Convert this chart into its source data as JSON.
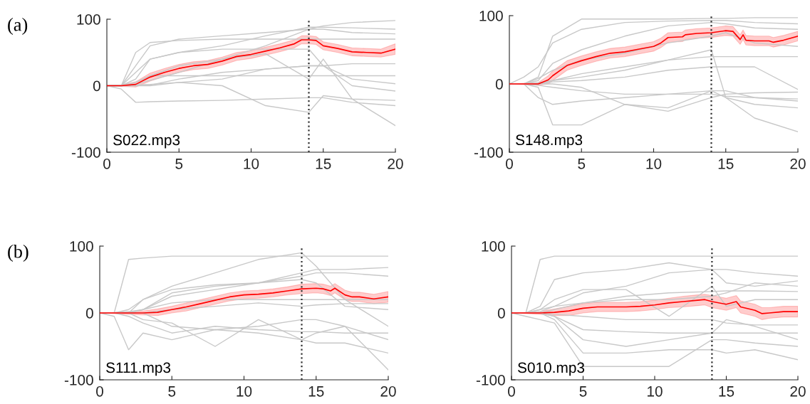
{
  "chart_data": [
    {
      "type": "line",
      "title": "(a)",
      "annotations": [
        "S022.mp3"
      ],
      "xlim": [
        0,
        20
      ],
      "ylim": [
        -100,
        100
      ],
      "xticks": [
        0,
        5,
        10,
        15,
        20
      ],
      "yticks": [
        -100,
        0,
        100
      ],
      "ref_lines": [
        {
          "axis": "x",
          "value": 14,
          "color": "#333333",
          "line_style": "dotted"
        }
      ],
      "x": [
        0,
        1,
        2,
        3,
        5,
        8,
        11,
        14,
        15,
        17,
        20
      ],
      "series": [
        {
          "color": "#c8c8c8",
          "values": [
            0,
            0,
            50,
            65,
            68,
            70,
            70,
            70,
            70,
            70,
            70
          ]
        },
        {
          "color": "#c8c8c8",
          "values": [
            0,
            0,
            5,
            15,
            15,
            15,
            15,
            15,
            15,
            15,
            15
          ]
        },
        {
          "color": "#c8c8c8",
          "values": [
            0,
            0,
            2,
            8,
            20,
            40,
            60,
            85,
            90,
            95,
            98
          ]
        },
        {
          "color": "#c8c8c8",
          "values": [
            0,
            -5,
            -25,
            -24,
            -23,
            -22,
            -20,
            -18,
            -18,
            -25,
            -30
          ]
        },
        {
          "color": "#c8c8c8",
          "values": [
            0,
            0,
            5,
            15,
            30,
            40,
            48,
            10,
            40,
            -20,
            -60
          ]
        },
        {
          "color": "#c8c8c8",
          "values": [
            0,
            0,
            10,
            40,
            50,
            60,
            75,
            88,
            88,
            87,
            85
          ]
        },
        {
          "color": "#c8c8c8",
          "values": [
            0,
            0,
            0,
            0,
            5,
            0,
            -30,
            -40,
            -15,
            -20,
            -22
          ]
        },
        {
          "color": "#c8c8c8",
          "values": [
            0,
            0,
            20,
            40,
            50,
            55,
            55,
            55,
            30,
            0,
            -8
          ]
        },
        {
          "color": "#c8c8c8",
          "values": [
            0,
            0,
            1,
            2,
            5,
            10,
            25,
            30,
            30,
            33,
            33
          ]
        },
        {
          "color": "#c8c8c8",
          "values": [
            0,
            0,
            30,
            60,
            70,
            75,
            80,
            85,
            85,
            80,
            78
          ]
        },
        {
          "color": "#c8c8c8",
          "values": [
            0,
            0,
            0,
            1,
            10,
            20,
            25,
            30,
            30,
            10,
            3
          ]
        },
        {
          "color": "#ff0000",
          "x": [
            0,
            1,
            2,
            3,
            4,
            5,
            6,
            7,
            8,
            9,
            10,
            11,
            12,
            13,
            13.5,
            14,
            14.5,
            15,
            16,
            17,
            18,
            19,
            20
          ],
          "values": [
            0,
            0,
            2,
            13,
            20,
            26,
            30,
            32,
            37,
            44,
            47,
            52,
            57,
            63,
            69,
            69,
            68,
            60,
            56,
            51,
            50,
            49,
            55
          ],
          "lower": [
            0,
            -1,
            -2,
            7,
            14,
            20,
            24,
            26,
            31,
            38,
            41,
            46,
            51,
            57,
            63,
            63,
            62,
            54,
            50,
            45,
            44,
            43,
            47
          ],
          "upper": [
            0,
            1,
            6,
            19,
            26,
            32,
            36,
            38,
            43,
            50,
            53,
            58,
            63,
            69,
            75,
            75,
            74,
            66,
            62,
            57,
            56,
            55,
            63
          ]
        }
      ]
    },
    {
      "type": "line",
      "annotations": [
        "S148.mp3"
      ],
      "xlim": [
        0,
        20
      ],
      "ylim": [
        -100,
        100
      ],
      "xticks": [
        0,
        5,
        10,
        15,
        20
      ],
      "yticks": [
        -100,
        0,
        100
      ],
      "ref_lines": [
        {
          "axis": "x",
          "value": 14,
          "color": "#333333",
          "line_style": "dotted"
        }
      ],
      "x": [
        0,
        1,
        2,
        3,
        5,
        8,
        11,
        14,
        15,
        17,
        20
      ],
      "series": [
        {
          "color": "#c8c8c8",
          "values": [
            0,
            10,
            25,
            60,
            80,
            90,
            92,
            93,
            93,
            90,
            88
          ]
        },
        {
          "color": "#c8c8c8",
          "values": [
            0,
            0,
            -20,
            -30,
            -25,
            -20,
            -15,
            -10,
            -10,
            -20,
            -25
          ]
        },
        {
          "color": "#c8c8c8",
          "values": [
            0,
            0,
            -5,
            -60,
            -60,
            -30,
            -40,
            -20,
            -15,
            -13,
            -12
          ]
        },
        {
          "color": "#c8c8c8",
          "values": [
            0,
            0,
            5,
            30,
            50,
            70,
            85,
            90,
            88,
            82,
            80
          ]
        },
        {
          "color": "#c8c8c8",
          "values": [
            0,
            0,
            2,
            5,
            10,
            20,
            35,
            50,
            -20,
            -50,
            -70
          ]
        },
        {
          "color": "#c8c8c8",
          "values": [
            0,
            0,
            0,
            5,
            15,
            25,
            35,
            40,
            40,
            40,
            40
          ]
        },
        {
          "color": "#c8c8c8",
          "values": [
            0,
            0,
            0,
            0,
            -5,
            -30,
            -35,
            -10,
            -20,
            -30,
            -35
          ]
        },
        {
          "color": "#c8c8c8",
          "values": [
            0,
            0,
            8,
            20,
            35,
            45,
            60,
            70,
            75,
            60,
            55
          ]
        },
        {
          "color": "#c8c8c8",
          "values": [
            0,
            0,
            10,
            70,
            95,
            95,
            95,
            96,
            96,
            97,
            97
          ]
        },
        {
          "color": "#c8c8c8",
          "values": [
            0,
            0,
            -2,
            -5,
            -10,
            -15,
            -15,
            -15,
            -18,
            -20,
            -22
          ]
        },
        {
          "color": "#c8c8c8",
          "values": [
            0,
            0,
            0,
            3,
            5,
            10,
            20,
            25,
            25,
            25,
            -8
          ]
        },
        {
          "color": "#ff0000",
          "x": [
            0,
            1,
            2,
            2.7,
            3,
            4,
            5,
            6,
            7,
            8,
            9,
            10,
            10.5,
            11,
            12,
            12.2,
            13,
            14,
            15,
            15.5,
            16,
            16.2,
            16.4,
            17,
            18,
            18.3,
            19,
            20
          ],
          "values": [
            0,
            0,
            0,
            6,
            12,
            27,
            34,
            40,
            45,
            47,
            51,
            55,
            60,
            68,
            69,
            72,
            74,
            75,
            78,
            77,
            65,
            72,
            64,
            63,
            63,
            61,
            64,
            70
          ],
          "lower": [
            0,
            -1,
            -2,
            0,
            5,
            20,
            27,
            33,
            38,
            40,
            44,
            48,
            53,
            61,
            62,
            65,
            67,
            68,
            71,
            70,
            58,
            65,
            57,
            56,
            56,
            54,
            57,
            63
          ],
          "upper": [
            0,
            1,
            2,
            12,
            19,
            34,
            41,
            47,
            52,
            54,
            58,
            62,
            67,
            75,
            76,
            79,
            81,
            82,
            85,
            84,
            72,
            79,
            71,
            70,
            70,
            68,
            71,
            77
          ]
        }
      ]
    },
    {
      "type": "line",
      "title": "(b)",
      "annotations": [
        "S111.mp3"
      ],
      "xlim": [
        0,
        20
      ],
      "ylim": [
        -100,
        100
      ],
      "xticks": [
        0,
        5,
        10,
        15,
        20
      ],
      "yticks": [
        -100,
        0,
        100
      ],
      "ref_lines": [
        {
          "axis": "x",
          "value": 14,
          "color": "#333333",
          "line_style": "dotted"
        }
      ],
      "x": [
        0,
        1,
        2,
        3,
        5,
        8,
        11,
        14,
        15,
        17,
        20
      ],
      "series": [
        {
          "color": "#c8c8c8",
          "values": [
            0,
            0,
            80,
            82,
            85,
            85,
            85,
            85,
            85,
            85,
            85
          ]
        },
        {
          "color": "#c8c8c8",
          "values": [
            0,
            0,
            0,
            20,
            40,
            60,
            80,
            90,
            70,
            20,
            -20
          ]
        },
        {
          "color": "#c8c8c8",
          "values": [
            0,
            -5,
            -55,
            -30,
            -40,
            -25,
            -30,
            -40,
            -45,
            -45,
            -60
          ]
        },
        {
          "color": "#c8c8c8",
          "values": [
            0,
            0,
            0,
            5,
            30,
            40,
            45,
            55,
            60,
            60,
            55
          ]
        },
        {
          "color": "#c8c8c8",
          "values": [
            0,
            0,
            -5,
            -15,
            -30,
            -20,
            -25,
            -28,
            -28,
            -30,
            -30
          ]
        },
        {
          "color": "#c8c8c8",
          "values": [
            0,
            0,
            2,
            5,
            15,
            20,
            20,
            20,
            20,
            20,
            20
          ]
        },
        {
          "color": "#c8c8c8",
          "values": [
            0,
            0,
            0,
            -10,
            -15,
            -50,
            -10,
            -40,
            -30,
            -20,
            -85
          ]
        },
        {
          "color": "#c8c8c8",
          "values": [
            0,
            0,
            5,
            20,
            35,
            42,
            45,
            50,
            45,
            10,
            5
          ]
        },
        {
          "color": "#c8c8c8",
          "values": [
            0,
            0,
            0,
            0,
            -20,
            -25,
            -20,
            -10,
            -10,
            -20,
            -40
          ]
        },
        {
          "color": "#c8c8c8",
          "values": [
            0,
            0,
            0,
            5,
            25,
            35,
            45,
            60,
            65,
            65,
            68
          ]
        },
        {
          "color": "#c8c8c8",
          "values": [
            0,
            0,
            0,
            0,
            5,
            10,
            15,
            10,
            12,
            14,
            14
          ]
        },
        {
          "color": "#ff0000",
          "x": [
            0,
            1,
            2,
            3,
            4,
            5,
            6,
            7,
            8,
            9,
            10,
            11,
            12,
            13,
            14,
            15,
            15.5,
            16,
            16.3,
            17,
            17.5,
            18,
            19,
            20
          ],
          "values": [
            0,
            0,
            0,
            0,
            1,
            5,
            9,
            14,
            19,
            24,
            27,
            28,
            30,
            33,
            36,
            37,
            36,
            33,
            37,
            27,
            24,
            24,
            21,
            24
          ],
          "lower": [
            0,
            -1,
            -2,
            -3,
            -4,
            0,
            3,
            8,
            13,
            18,
            21,
            22,
            24,
            27,
            29,
            30,
            29,
            26,
            30,
            20,
            17,
            17,
            14,
            16
          ],
          "upper": [
            0,
            1,
            2,
            3,
            6,
            10,
            15,
            20,
            25,
            30,
            33,
            34,
            36,
            39,
            43,
            44,
            43,
            40,
            44,
            34,
            31,
            31,
            28,
            32
          ]
        }
      ]
    },
    {
      "type": "line",
      "annotations": [
        "S010.mp3"
      ],
      "xlim": [
        0,
        20
      ],
      "ylim": [
        -100,
        100
      ],
      "xticks": [
        0,
        5,
        10,
        15,
        20
      ],
      "yticks": [
        -100,
        0,
        100
      ],
      "ref_lines": [
        {
          "axis": "x",
          "value": 14,
          "color": "#333333",
          "line_style": "dotted"
        }
      ],
      "x": [
        0,
        1,
        2,
        3,
        5,
        8,
        11,
        14,
        15,
        17,
        20
      ],
      "series": [
        {
          "color": "#c8c8c8",
          "values": [
            0,
            0,
            80,
            85,
            85,
            85,
            85,
            85,
            85,
            85,
            85
          ]
        },
        {
          "color": "#c8c8c8",
          "values": [
            0,
            0,
            0,
            -5,
            -40,
            -50,
            -40,
            -30,
            -10,
            -20,
            -40
          ]
        },
        {
          "color": "#c8c8c8",
          "values": [
            0,
            -5,
            -10,
            -15,
            -80,
            -80,
            -80,
            -40,
            -40,
            -45,
            -50
          ]
        },
        {
          "color": "#c8c8c8",
          "values": [
            0,
            0,
            5,
            10,
            30,
            40,
            60,
            65,
            65,
            60,
            55
          ]
        },
        {
          "color": "#c8c8c8",
          "values": [
            0,
            0,
            0,
            5,
            15,
            25,
            30,
            32,
            33,
            33,
            32
          ]
        },
        {
          "color": "#c8c8c8",
          "values": [
            0,
            0,
            0,
            -5,
            -25,
            -28,
            -30,
            -30,
            -30,
            -30,
            -30
          ]
        },
        {
          "color": "#c8c8c8",
          "values": [
            0,
            0,
            5,
            20,
            35,
            35,
            -5,
            40,
            10,
            20,
            20
          ]
        },
        {
          "color": "#c8c8c8",
          "values": [
            0,
            0,
            0,
            -2,
            -5,
            -10,
            -10,
            -10,
            -15,
            -18,
            -18
          ]
        },
        {
          "color": "#c8c8c8",
          "values": [
            0,
            0,
            10,
            50,
            60,
            65,
            75,
            65,
            45,
            40,
            48
          ]
        },
        {
          "color": "#c8c8c8",
          "values": [
            0,
            0,
            0,
            -10,
            -60,
            -60,
            -55,
            -55,
            -60,
            -55,
            -70
          ]
        },
        {
          "color": "#c8c8c8",
          "values": [
            0,
            0,
            2,
            10,
            15,
            20,
            20,
            25,
            30,
            45,
            40
          ]
        },
        {
          "color": "#ff0000",
          "x": [
            0,
            2,
            3,
            4,
            5,
            6,
            7,
            8,
            9,
            10,
            11,
            12,
            13,
            13.5,
            14,
            15,
            15.7,
            16,
            17,
            17.5,
            18,
            19,
            20
          ],
          "values": [
            0,
            0,
            1,
            3,
            7,
            9,
            9,
            9,
            10,
            12,
            15,
            17,
            19,
            20,
            17,
            13,
            17,
            9,
            4,
            -1,
            0,
            2,
            2
          ],
          "lower": [
            0,
            -2,
            -4,
            -4,
            0,
            2,
            2,
            2,
            3,
            5,
            8,
            9,
            11,
            12,
            8,
            4,
            8,
            0,
            -5,
            -10,
            -8,
            -6,
            -6
          ],
          "upper": [
            0,
            2,
            6,
            10,
            14,
            16,
            16,
            16,
            17,
            19,
            22,
            25,
            27,
            28,
            26,
            22,
            26,
            18,
            13,
            8,
            8,
            10,
            10
          ]
        }
      ]
    }
  ]
}
